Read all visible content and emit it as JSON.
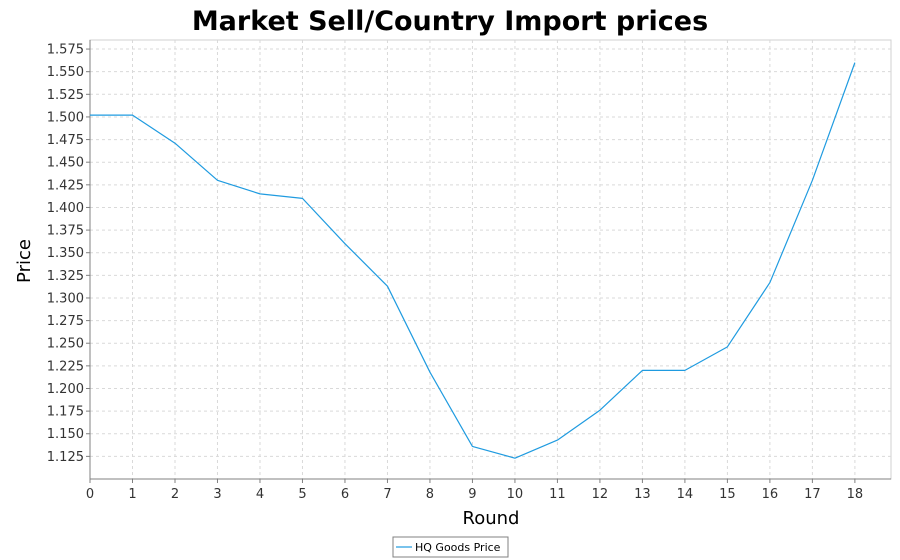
{
  "chart_data": {
    "type": "line",
    "title": "Market Sell/Country Import prices",
    "xlabel": "Round",
    "ylabel": "Price",
    "xlim": [
      0,
      18.85
    ],
    "ylim": [
      1.1,
      1.585
    ],
    "x_ticks": [
      0,
      1,
      2,
      3,
      4,
      5,
      6,
      7,
      8,
      9,
      10,
      11,
      12,
      13,
      14,
      15,
      16,
      17,
      18
    ],
    "y_ticks": [
      1.125,
      1.15,
      1.175,
      1.2,
      1.225,
      1.25,
      1.275,
      1.3,
      1.325,
      1.35,
      1.375,
      1.4,
      1.425,
      1.45,
      1.475,
      1.5,
      1.525,
      1.55,
      1.575
    ],
    "y_tick_labels": [
      "1.125",
      "1.150",
      "1.175",
      "1.200",
      "1.225",
      "1.250",
      "1.275",
      "1.300",
      "1.325",
      "1.350",
      "1.375",
      "1.400",
      "1.425",
      "1.450",
      "1.475",
      "1.500",
      "1.525",
      "1.550",
      "1.575"
    ],
    "grid": true,
    "legend_position": "bottom-center",
    "series": [
      {
        "name": "HQ Goods Price",
        "color": "#1f9be0",
        "x": [
          0,
          1,
          2,
          3,
          4,
          5,
          6,
          7,
          8,
          9,
          10,
          11,
          12,
          13,
          14,
          15,
          16,
          17,
          18
        ],
        "y": [
          1.502,
          1.502,
          1.471,
          1.43,
          1.415,
          1.41,
          1.36,
          1.313,
          1.218,
          1.136,
          1.123,
          1.143,
          1.176,
          1.22,
          1.22,
          1.246,
          1.317,
          1.43,
          1.56
        ]
      }
    ]
  }
}
